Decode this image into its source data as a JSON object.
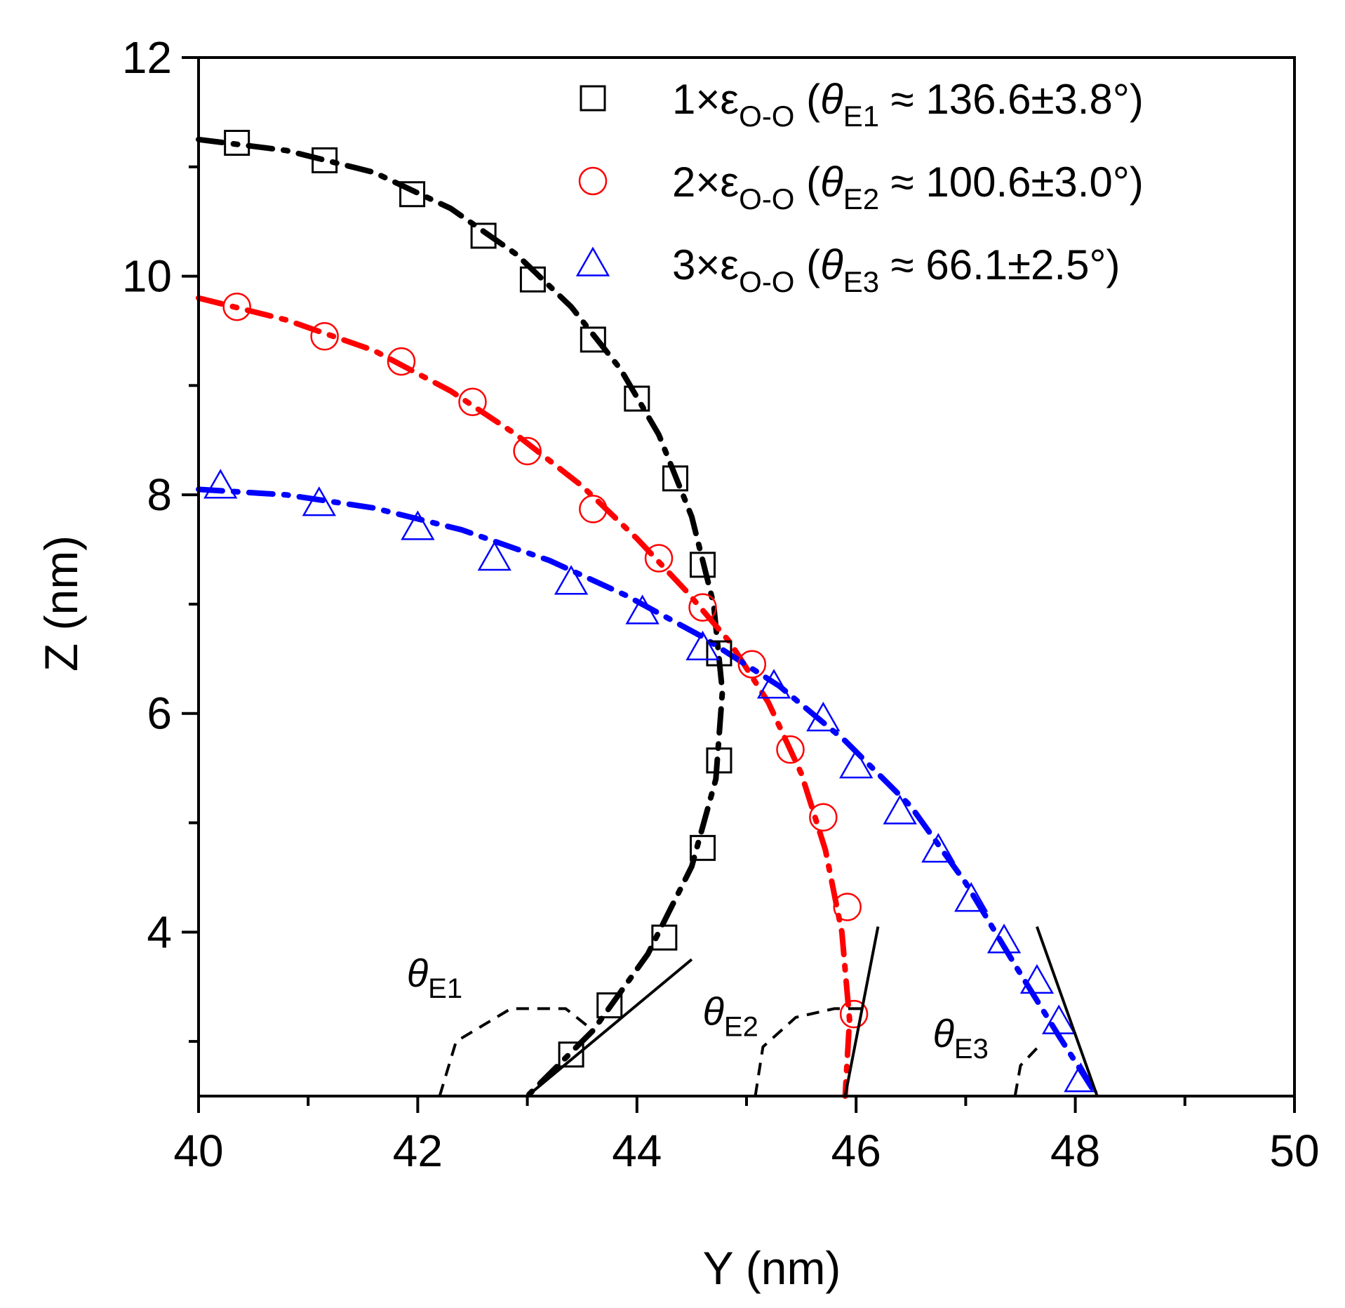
{
  "chart_data": {
    "type": "scatter",
    "xlabel": "Y (nm)",
    "ylabel": "Z (nm)",
    "xlim": [
      40,
      50
    ],
    "ylim": [
      2.5,
      12
    ],
    "x_ticks": [
      40,
      42,
      44,
      46,
      48,
      50
    ],
    "y_ticks": [
      4,
      6,
      8,
      10,
      12
    ],
    "x_minor_step": 1,
    "y_minor_step": 1,
    "legend_position": "top-right",
    "series": [
      {
        "name": "1×ε_O-O (θ_E1 ≈ 136.6±3.8°)",
        "legend_prefix": "1×ε",
        "legend_sub": "O-O",
        "theta_sub": "E1",
        "legend_value": "136.6±3.8°",
        "marker": "square",
        "color": "#000000",
        "points": [
          [
            40.35,
            11.22
          ],
          [
            41.15,
            11.06
          ],
          [
            41.95,
            10.75
          ],
          [
            42.6,
            10.37
          ],
          [
            43.05,
            9.97
          ],
          [
            43.6,
            9.42
          ],
          [
            44.0,
            8.88
          ],
          [
            44.35,
            8.15
          ],
          [
            44.6,
            7.36
          ],
          [
            44.75,
            6.55
          ],
          [
            44.75,
            5.57
          ],
          [
            44.6,
            4.77
          ],
          [
            44.25,
            3.95
          ],
          [
            43.75,
            3.33
          ],
          [
            43.4,
            2.88
          ]
        ],
        "fit": [
          [
            40.0,
            11.25
          ],
          [
            40.8,
            11.15
          ],
          [
            41.6,
            10.95
          ],
          [
            42.3,
            10.62
          ],
          [
            42.9,
            10.2
          ],
          [
            43.4,
            9.72
          ],
          [
            43.85,
            9.15
          ],
          [
            44.2,
            8.55
          ],
          [
            44.5,
            7.8
          ],
          [
            44.7,
            7.0
          ],
          [
            44.78,
            6.2
          ],
          [
            44.72,
            5.4
          ],
          [
            44.5,
            4.6
          ],
          [
            44.1,
            3.8
          ],
          [
            43.6,
            3.1
          ],
          [
            43.0,
            2.5
          ]
        ],
        "tangent": [
          [
            43.0,
            2.5
          ],
          [
            44.5,
            3.75
          ]
        ],
        "angle_arc": [
          [
            42.2,
            2.5
          ],
          [
            42.35,
            3.0
          ],
          [
            42.85,
            3.3
          ],
          [
            43.35,
            3.3
          ],
          [
            43.6,
            3.1
          ]
        ],
        "angle_label_pos": [
          41.9,
          3.5
        ]
      },
      {
        "name": "2×ε_O-O (θ_E2 ≈ 100.6±3.0°)",
        "legend_prefix": "2×ε",
        "legend_sub": "O-O",
        "theta_sub": "E2",
        "legend_value": "100.6±3.0°",
        "marker": "circle",
        "color": "#ff0000",
        "points": [
          [
            40.35,
            9.72
          ],
          [
            41.15,
            9.45
          ],
          [
            41.85,
            9.22
          ],
          [
            42.5,
            8.85
          ],
          [
            43.0,
            8.4
          ],
          [
            43.6,
            7.87
          ],
          [
            44.2,
            7.42
          ],
          [
            44.6,
            6.97
          ],
          [
            45.05,
            6.45
          ],
          [
            45.4,
            5.67
          ],
          [
            45.7,
            5.05
          ],
          [
            45.92,
            4.23
          ],
          [
            45.98,
            3.25
          ]
        ],
        "fit": [
          [
            40.0,
            9.8
          ],
          [
            40.8,
            9.6
          ],
          [
            41.6,
            9.32
          ],
          [
            42.3,
            8.95
          ],
          [
            42.9,
            8.55
          ],
          [
            43.5,
            8.08
          ],
          [
            44.0,
            7.6
          ],
          [
            44.45,
            7.12
          ],
          [
            44.85,
            6.65
          ],
          [
            45.2,
            6.1
          ],
          [
            45.5,
            5.45
          ],
          [
            45.72,
            4.75
          ],
          [
            45.87,
            4.0
          ],
          [
            45.94,
            3.2
          ],
          [
            45.9,
            2.5
          ]
        ],
        "tangent": [
          [
            45.9,
            2.5
          ],
          [
            46.2,
            4.05
          ]
        ],
        "angle_arc": [
          [
            45.08,
            2.5
          ],
          [
            45.15,
            2.95
          ],
          [
            45.45,
            3.22
          ],
          [
            45.8,
            3.3
          ],
          [
            46.05,
            3.3
          ]
        ],
        "angle_label_pos": [
          44.6,
          3.15
        ]
      },
      {
        "name": "3×ε_O-O (θ_E3 ≈ 66.1±2.5°)",
        "legend_prefix": "3×ε",
        "legend_sub": "O-O",
        "theta_sub": "E3",
        "legend_value": "66.1±2.5°",
        "marker": "triangle",
        "color": "#0000ff",
        "points": [
          [
            40.2,
            8.08
          ],
          [
            41.1,
            7.92
          ],
          [
            42.0,
            7.7
          ],
          [
            42.7,
            7.42
          ],
          [
            43.4,
            7.2
          ],
          [
            44.05,
            6.93
          ],
          [
            44.6,
            6.6
          ],
          [
            45.25,
            6.25
          ],
          [
            45.7,
            5.95
          ],
          [
            46.0,
            5.52
          ],
          [
            46.4,
            5.1
          ],
          [
            46.75,
            4.75
          ],
          [
            47.05,
            4.3
          ],
          [
            47.35,
            3.92
          ],
          [
            47.65,
            3.55
          ],
          [
            47.85,
            3.18
          ],
          [
            48.05,
            2.65
          ]
        ],
        "fit": [
          [
            40.0,
            8.05
          ],
          [
            40.8,
            8.0
          ],
          [
            41.6,
            7.88
          ],
          [
            42.4,
            7.68
          ],
          [
            43.2,
            7.4
          ],
          [
            43.9,
            7.08
          ],
          [
            44.6,
            6.7
          ],
          [
            45.3,
            6.25
          ],
          [
            45.9,
            5.75
          ],
          [
            46.5,
            5.15
          ],
          [
            47.0,
            4.45
          ],
          [
            47.45,
            3.7
          ],
          [
            47.85,
            3.05
          ],
          [
            48.2,
            2.5
          ]
        ],
        "tangent": [
          [
            47.65,
            4.05
          ],
          [
            48.2,
            2.5
          ]
        ],
        "angle_arc": [
          [
            47.45,
            2.5
          ],
          [
            47.5,
            2.78
          ],
          [
            47.68,
            2.97
          ]
        ],
        "angle_label_pos": [
          46.7,
          2.95
        ]
      }
    ]
  },
  "ui": {
    "approx": "≈",
    "theta": "θ",
    "paren_open": "(",
    "paren_close": ")"
  }
}
